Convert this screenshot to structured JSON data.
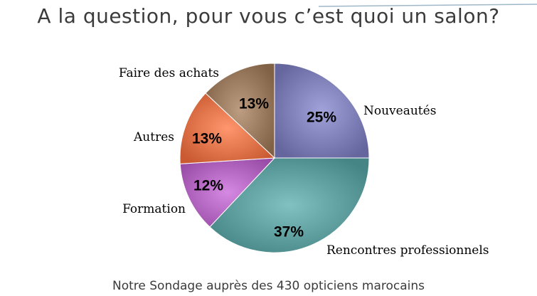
{
  "title": "A la question, pour vous c’est quoi un salon?",
  "subtitle": "Notre Sondage auprès des 430 opticiens marocains",
  "chart_data": {
    "type": "pie",
    "title": "A la question, pour vous c’est quoi un salon?",
    "slices": [
      {
        "label": "Nouveautés",
        "value": 25,
        "value_label": "25%",
        "color": "#7f7fb8"
      },
      {
        "label": "Rencontres professionnels",
        "value": 37,
        "value_label": "37%",
        "color": "#5f9e9e"
      },
      {
        "label": "Formation",
        "value": 12,
        "value_label": "12%",
        "color": "#b366c0"
      },
      {
        "label": "Autres",
        "value": 13,
        "value_label": "13%",
        "color": "#e2734a"
      },
      {
        "label": "Faire des achats",
        "value": 13,
        "value_label": "13%",
        "color": "#9a7a5e"
      }
    ],
    "start_angle_deg": 0,
    "direction": "clockwise",
    "legend": "none",
    "labels_outside": true
  }
}
